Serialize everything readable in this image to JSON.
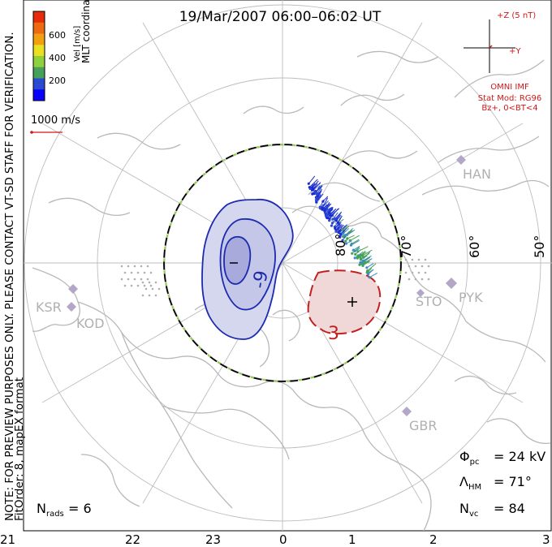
{
  "title": "19/Mar/2007 06:00–06:02 UT",
  "left_notice": "NOTE: FOR PREVIEW PURPOSES ONLY. PLEASE CONTACT VT-SD STAFF FOR VERIFICATION.",
  "fit_order": "FitOrder: 8, mapEX format",
  "coords_label": "MLT coordinates",
  "colorbar": {
    "label": "Vel [m/s]",
    "ticks": [
      "600",
      "400",
      "200"
    ],
    "colors": [
      "#0a00ff",
      "#2a4ad2",
      "#46a05a",
      "#8fd13a",
      "#e8e020",
      "#f0a010",
      "#ee6a10",
      "#e62a0a"
    ]
  },
  "vector_scale": "1000 m/s",
  "imf": {
    "bz_label": "+Z (5 nT)",
    "by_label": "+Y",
    "source": "OMNI IMF",
    "stat_mod": "Stat Mod: RG96",
    "condition": "Bz+, 0<BT<4"
  },
  "latitude_labels": [
    "80°",
    "70°",
    "60°",
    "50°"
  ],
  "mlt_labels": [
    "21",
    "22",
    "23",
    "0",
    "1",
    "2",
    "3"
  ],
  "contour_labels": [
    "-9",
    "3"
  ],
  "sites": [
    "HAN",
    "KSR",
    "KOD",
    "STO",
    "PYK",
    "GBR"
  ],
  "stats": {
    "phi_pc": "24 kV",
    "lambda_hm": "71°",
    "n_vc": "84",
    "n_rads": "6"
  },
  "accent_colors": {
    "negative_cell": "#1020a0",
    "positive_cell": "#c02020",
    "hm_boundary": "#8fd13a"
  }
}
